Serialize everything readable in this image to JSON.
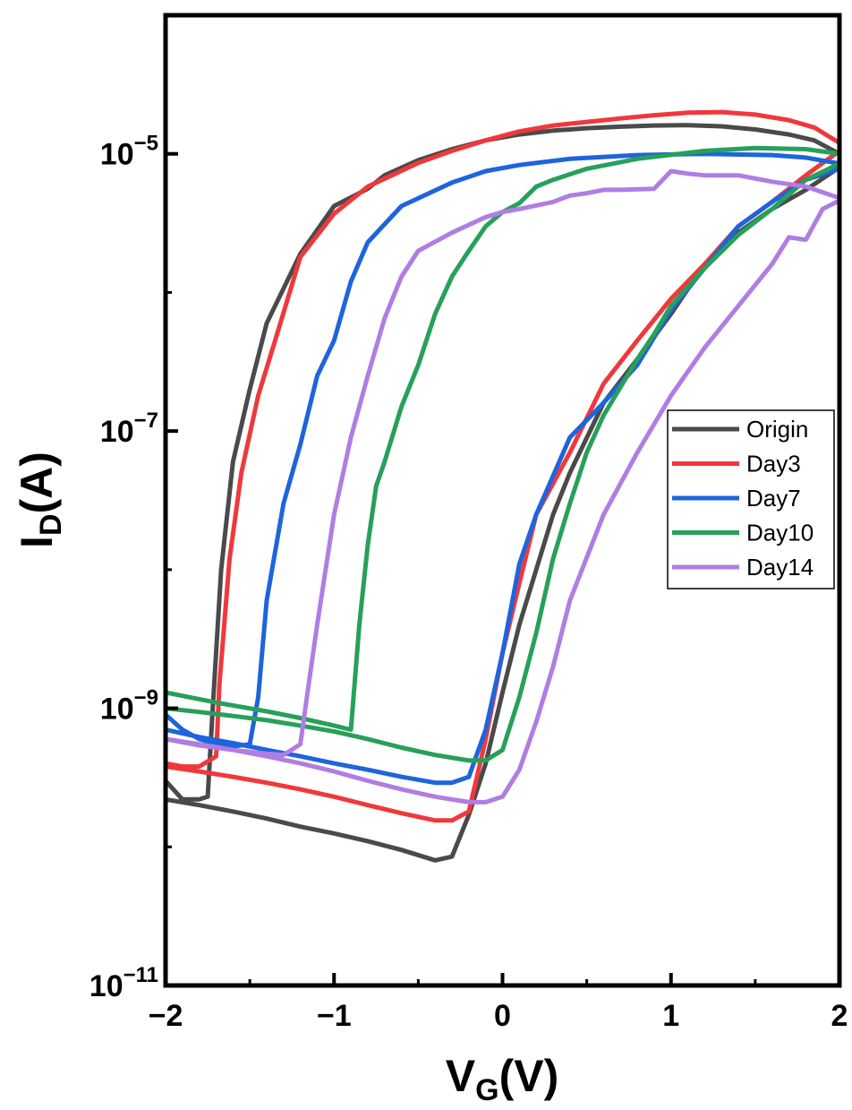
{
  "chart_data": {
    "type": "line",
    "xlabel": {
      "main": "V",
      "sub": "G",
      "tail": "(V)"
    },
    "ylabel": {
      "main": "I",
      "sub": "D",
      "tail": "(A)"
    },
    "xlim": [
      -2,
      2
    ],
    "ylim": [
      1e-11,
      0.0001
    ],
    "yscale": "log",
    "grid": false,
    "legend_position": "right",
    "x_ticks": [
      {
        "value": -2,
        "label": "−2"
      },
      {
        "value": -1,
        "label": "−1"
      },
      {
        "value": 0,
        "label": "0"
      },
      {
        "value": 1,
        "label": "1"
      },
      {
        "value": 2,
        "label": "2"
      }
    ],
    "y_ticks": [
      {
        "value": 1e-11,
        "base": "10",
        "exp": "−11"
      },
      {
        "value": 1e-09,
        "base": "10",
        "exp": "−9"
      },
      {
        "value": 1e-07,
        "base": "10",
        "exp": "−7"
      },
      {
        "value": 1e-05,
        "base": "10",
        "exp": "−5"
      }
    ],
    "series": [
      {
        "name": "Origin",
        "color": "#4a4a4a",
        "x": [
          -2.0,
          -1.9,
          -1.8,
          -1.75,
          -1.72,
          -1.67,
          -1.6,
          -1.5,
          -1.4,
          -1.2,
          -1.0,
          -0.8,
          -0.7,
          -0.5,
          -0.3,
          -0.1,
          0.1,
          0.3,
          0.5,
          0.7,
          0.9,
          1.1,
          1.3,
          1.5,
          1.7,
          1.85,
          2.0,
          2.0,
          1.8,
          1.6,
          1.4,
          1.2,
          1.0,
          0.8,
          0.6,
          0.4,
          0.3,
          0.1,
          0.0,
          -0.1,
          -0.2,
          -0.3,
          -0.4,
          -0.6,
          -0.8,
          -1.0,
          -1.2,
          -1.4,
          -1.6,
          -1.8,
          -2.0
        ],
        "y": [
          3e-10,
          2.2e-10,
          2.2e-10,
          2.3e-10,
          1e-09,
          1e-08,
          6e-08,
          2e-07,
          6e-07,
          1.9e-06,
          4.2e-06,
          5.6e-06,
          7e-06,
          9e-06,
          1.08e-05,
          1.25e-05,
          1.38e-05,
          1.47e-05,
          1.53e-05,
          1.57e-05,
          1.6e-05,
          1.61e-05,
          1.58e-05,
          1.5e-05,
          1.38e-05,
          1.25e-05,
          1e-05,
          8e-06,
          5.5e-06,
          4e-06,
          2.7e-06,
          1.6e-06,
          7e-07,
          3.3e-07,
          1.6e-07,
          5e-08,
          2.5e-08,
          4e-09,
          1.3e-09,
          4e-10,
          1.7e-10,
          8.5e-11,
          8e-11,
          9.5e-11,
          1.1e-10,
          1.25e-10,
          1.4e-10,
          1.6e-10,
          1.8e-10,
          2e-10,
          2.2e-10
        ]
      },
      {
        "name": "Day3",
        "color": "#f0383c",
        "x": [
          -2.0,
          -1.9,
          -1.8,
          -1.7,
          -1.68,
          -1.62,
          -1.55,
          -1.45,
          -1.35,
          -1.2,
          -1.0,
          -0.8,
          -0.5,
          -0.3,
          -0.1,
          0.1,
          0.3,
          0.5,
          0.7,
          0.9,
          1.1,
          1.3,
          1.5,
          1.7,
          1.85,
          2.0,
          2.0,
          1.8,
          1.6,
          1.4,
          1.2,
          1.0,
          0.8,
          0.6,
          0.4,
          0.2,
          0.1,
          0.0,
          -0.1,
          -0.2,
          -0.3,
          -0.4,
          -0.6,
          -0.8,
          -1.0,
          -1.2,
          -1.4,
          -1.6,
          -1.8,
          -2.0
        ],
        "y": [
          4e-10,
          3.8e-10,
          3.8e-10,
          4.5e-10,
          1.5e-09,
          1.2e-08,
          5e-08,
          1.8e-07,
          4.5e-07,
          1.8e-06,
          3.7e-06,
          5.8e-06,
          8.6e-06,
          1.05e-05,
          1.25e-05,
          1.45e-05,
          1.6e-05,
          1.7e-05,
          1.8e-05,
          1.9e-05,
          1.98e-05,
          2e-05,
          1.92e-05,
          1.75e-05,
          1.55e-05,
          1.2e-05,
          1.05e-05,
          7e-06,
          4.5e-06,
          3e-06,
          1.6e-06,
          9e-07,
          4.5e-07,
          2.2e-07,
          7e-08,
          2.5e-08,
          8e-09,
          2.5e-09,
          6e-10,
          1.8e-10,
          1.55e-10,
          1.55e-10,
          1.75e-10,
          2e-10,
          2.3e-10,
          2.6e-10,
          2.9e-10,
          3.2e-10,
          3.5e-10,
          3.8e-10
        ]
      },
      {
        "name": "Day7",
        "color": "#1e64dc",
        "x": [
          -2.0,
          -1.9,
          -1.8,
          -1.7,
          -1.6,
          -1.5,
          -1.45,
          -1.4,
          -1.3,
          -1.2,
          -1.1,
          -1.0,
          -0.9,
          -0.8,
          -0.6,
          -0.3,
          -0.1,
          0.1,
          0.4,
          0.8,
          1.2,
          1.6,
          1.8,
          2.0,
          2.0,
          1.8,
          1.6,
          1.4,
          1.2,
          1.0,
          0.8,
          0.6,
          0.4,
          0.2,
          0.1,
          0.0,
          -0.1,
          -0.2,
          -0.3,
          -0.4,
          -0.6,
          -0.8,
          -1.0,
          -1.2,
          -1.4,
          -1.6,
          -1.8,
          -2.0
        ],
        "y": [
          9e-10,
          7e-10,
          6e-10,
          5.5e-10,
          5.3e-10,
          5.5e-10,
          1.2e-09,
          6e-09,
          3e-08,
          8e-08,
          2.5e-07,
          4.5e-07,
          1.2e-06,
          2.3e-06,
          4.2e-06,
          6.2e-06,
          7.5e-06,
          8.3e-06,
          9.2e-06,
          9.8e-06,
          1e-05,
          9.8e-06,
          9.4e-06,
          8.5e-06,
          7.8e-06,
          6.5e-06,
          4.5e-06,
          3e-06,
          1.5e-06,
          7.5e-07,
          3e-07,
          1.6e-07,
          9e-08,
          2.5e-08,
          1.1e-08,
          2.5e-09,
          7e-10,
          3.2e-10,
          2.9e-10,
          2.9e-10,
          3.2e-10,
          3.6e-10,
          4e-10,
          4.5e-10,
          5e-10,
          5.6e-10,
          6.2e-10,
          7e-10
        ]
      },
      {
        "name": "Day10",
        "color": "#27a05a",
        "x": [
          -2.0,
          -1.7,
          -1.4,
          -1.2,
          -1.0,
          -0.9,
          -0.85,
          -0.8,
          -0.75,
          -0.7,
          -0.6,
          -0.5,
          -0.4,
          -0.3,
          -0.2,
          -0.1,
          0.0,
          0.1,
          0.2,
          0.3,
          0.5,
          0.8,
          1.2,
          1.5,
          1.8,
          2.0,
          2.0,
          1.8,
          1.6,
          1.4,
          1.2,
          1.0,
          0.9,
          0.8,
          0.6,
          0.5,
          0.4,
          0.3,
          0.2,
          0.1,
          0.0,
          -0.1,
          -0.2,
          -0.4,
          -0.6,
          -0.8,
          -1.0,
          -1.2,
          -1.4,
          -1.6,
          -1.8,
          -2.0
        ],
        "y": [
          1.3e-09,
          1.1e-09,
          9.5e-10,
          8.5e-10,
          7.5e-10,
          7e-10,
          4e-09,
          1.5e-08,
          4e-08,
          6e-08,
          1.5e-07,
          3e-07,
          7e-07,
          1.3e-06,
          2e-06,
          3e-06,
          3.8e-06,
          4.4e-06,
          5.8e-06,
          6.5e-06,
          7.8e-06,
          9.2e-06,
          1.05e-05,
          1.1e-05,
          1.08e-05,
          1e-05,
          8.5e-06,
          6.5e-06,
          4e-06,
          2.6e-06,
          1.5e-06,
          8e-07,
          5e-07,
          3.3e-07,
          1.3e-07,
          7e-08,
          3e-08,
          1.2e-08,
          3.5e-09,
          1.2e-09,
          5e-10,
          4.2e-10,
          4.2e-10,
          4.6e-10,
          5.2e-10,
          6e-10,
          6.8e-10,
          7.5e-10,
          8.2e-10,
          8.8e-10,
          9.4e-10,
          1e-09
        ]
      },
      {
        "name": "Day14",
        "color": "#b07de2",
        "x": [
          -2.0,
          -1.8,
          -1.6,
          -1.4,
          -1.3,
          -1.2,
          -1.15,
          -1.1,
          -1.0,
          -0.9,
          -0.8,
          -0.7,
          -0.6,
          -0.5,
          -0.3,
          -0.1,
          0.0,
          0.1,
          0.3,
          0.4,
          0.5,
          0.6,
          0.7,
          0.9,
          1.0,
          1.1,
          1.2,
          1.4,
          1.6,
          1.8,
          2.0,
          2.0,
          1.9,
          1.8,
          1.7,
          1.6,
          1.4,
          1.2,
          1.0,
          0.8,
          0.6,
          0.4,
          0.3,
          0.2,
          0.1,
          0.0,
          -0.1,
          -0.2,
          -0.4,
          -0.6,
          -0.8,
          -1.0,
          -1.2,
          -1.4,
          -1.6,
          -1.8,
          -2.0
        ],
        "y": [
          6e-10,
          5.4e-10,
          5e-10,
          4.7e-10,
          4.6e-10,
          5.5e-10,
          1.5e-09,
          4e-09,
          2.5e-08,
          9e-08,
          2.5e-07,
          6.5e-07,
          1.3e-06,
          2e-06,
          2.7e-06,
          3.5e-06,
          3.8e-06,
          4e-06,
          4.5e-06,
          5e-06,
          5.2e-06,
          5.5e-06,
          5.5e-06,
          5.6e-06,
          7.5e-06,
          7.2e-06,
          7e-06,
          7e-06,
          6.3e-06,
          5.8e-06,
          4.8e-06,
          4.6e-06,
          4e-06,
          2.4e-06,
          2.5e-06,
          1.6e-06,
          8e-07,
          4e-07,
          1.8e-07,
          7e-08,
          2.5e-08,
          6e-09,
          2e-09,
          8e-10,
          3.6e-10,
          2.3e-10,
          2.1e-10,
          2.1e-10,
          2.3e-10,
          2.6e-10,
          3e-10,
          3.5e-10,
          4e-10,
          4.5e-10,
          5e-10,
          5.5e-10,
          6e-10
        ]
      }
    ]
  }
}
